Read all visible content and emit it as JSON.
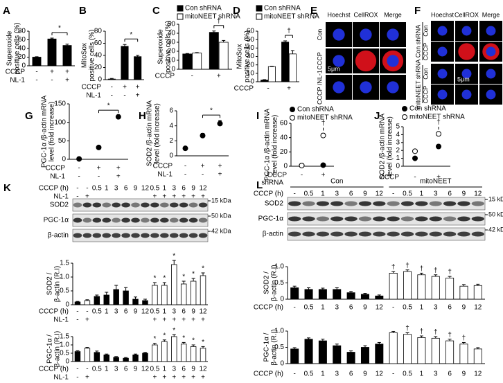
{
  "chart_data": [
    {
      "type": "bar",
      "panel": "A",
      "ylabel": [
        "Superoxide",
        "positive cells (%)"
      ],
      "ylim": [
        0,
        80
      ],
      "yticks": [
        0,
        20,
        40,
        60,
        80
      ],
      "series": [
        {
          "color": "#000000",
          "values": [
            20,
            62,
            47
          ],
          "errors": [
            1,
            2,
            3
          ]
        }
      ],
      "conditions": [
        {
          "label": "CCCP",
          "values": [
            "-",
            "+",
            "+"
          ]
        },
        {
          "label": "NL-1",
          "values": [
            "-",
            "-",
            "+"
          ]
        }
      ],
      "significance": "*"
    },
    {
      "type": "bar",
      "panel": "B",
      "ylabel": [
        "MitoSox",
        "positive cells (%)"
      ],
      "ylim": [
        0,
        80
      ],
      "yticks": [
        0,
        20,
        40,
        60,
        80
      ],
      "series": [
        {
          "color": "#000000",
          "values": [
            1,
            55,
            38
          ],
          "errors": [
            1,
            3,
            2
          ]
        }
      ],
      "conditions": [
        {
          "label": "CCCP",
          "values": [
            "-",
            "+",
            "+"
          ]
        },
        {
          "label": "NL-1",
          "values": [
            "-",
            "-",
            "+"
          ]
        }
      ],
      "significance": "*"
    },
    {
      "type": "bar",
      "panel": "C",
      "ylabel": [
        "Superoxide",
        "positive cells (%)"
      ],
      "ylim": [
        0,
        50
      ],
      "yticks": [
        0,
        10,
        20,
        30,
        40,
        50
      ],
      "series": [
        {
          "name": "Con shRNA",
          "color": "#000000",
          "values": [
            17,
            41
          ],
          "errors": [
            0.5,
            1.5
          ]
        },
        {
          "name": "mitoNEET shRNA",
          "color": "#ffffff",
          "values": [
            18,
            30
          ],
          "errors": [
            0.5,
            2
          ]
        }
      ],
      "conditions": [
        {
          "label": "CCCP",
          "values": [
            "-",
            "+"
          ]
        }
      ],
      "significance": "†"
    },
    {
      "type": "bar",
      "panel": "D",
      "ylabel": [
        "MitoSox",
        "positive cells (%)"
      ],
      "ylim": [
        0,
        60
      ],
      "yticks": [
        0,
        10,
        20,
        30,
        40,
        50,
        60
      ],
      "series": [
        {
          "name": "Con shRNA",
          "color": "#000000",
          "values": [
            2,
            47
          ],
          "errors": [
            0.5,
            1.5
          ]
        },
        {
          "name": "mitoNEET shRNA",
          "color": "#ffffff",
          "values": [
            18,
            33
          ],
          "errors": [
            0.5,
            4
          ]
        }
      ],
      "conditions": [
        {
          "label": "CCCP",
          "values": [
            "-",
            "+"
          ]
        }
      ],
      "significance": "†"
    },
    {
      "type": "scatter",
      "panel": "G",
      "ylabel": [
        "PGC-1α /β-actin mRNA",
        "level (fold increase)"
      ],
      "ylim": [
        0,
        150
      ],
      "yticks": [
        0,
        50,
        100,
        150
      ],
      "series": [
        {
          "color": "#000000",
          "values": [
            1,
            32,
            115
          ],
          "errors": [
            1,
            3,
            3
          ]
        }
      ],
      "conditions": [
        {
          "label": "CCCP",
          "values": [
            "-",
            "+",
            "+"
          ]
        },
        {
          "label": "NL-1",
          "values": [
            "-",
            "-",
            "+"
          ]
        }
      ],
      "significance": "*"
    },
    {
      "type": "scatter",
      "panel": "H",
      "ylabel": [
        "SOD2 /β-actin mRNA",
        "level (fold increase)"
      ],
      "ylim": [
        0,
        6
      ],
      "yticks": [
        0,
        2,
        4,
        6
      ],
      "series": [
        {
          "color": "#000000",
          "values": [
            1,
            2.7,
            4.3
          ],
          "errors": [
            0.1,
            0.3,
            0.4
          ]
        }
      ],
      "conditions": [
        {
          "label": "CCCP",
          "values": [
            "-",
            "+",
            "+"
          ]
        },
        {
          "label": "NL-1",
          "values": [
            "-",
            "-",
            "+"
          ]
        }
      ],
      "significance": "*"
    },
    {
      "type": "scatter",
      "panel": "I",
      "ylabel": [
        "PGC-1α /β-actin mRNA",
        "level (fold increase)"
      ],
      "ylim": [
        0,
        60
      ],
      "yticks": [
        0,
        20,
        40,
        60
      ],
      "series": [
        {
          "name": "Con shRNA",
          "color": "#000000",
          "values": [
            1,
            1.5
          ]
        },
        {
          "name": "mitoNEET shRNA",
          "color": "#ffffff",
          "values": [
            1,
            43
          ],
          "errors": [
            0.3,
            3
          ]
        }
      ],
      "conditions": [
        {
          "label": "CCCP",
          "values": [
            "-",
            "+"
          ]
        }
      ],
      "significance": "†"
    },
    {
      "type": "scatter",
      "panel": "J",
      "ylabel": [
        "SOD2 /β-actin mRNA",
        "level (fold increase)"
      ],
      "ylim": [
        0,
        5
      ],
      "yticks": [
        0,
        1,
        2,
        3,
        4,
        5
      ],
      "series": [
        {
          "name": "Con shRNA",
          "color": "#000000",
          "values": [
            1,
            2.5
          ]
        },
        {
          "name": "mitoNEET shRNA",
          "color": "#ffffff",
          "values": [
            1.9,
            4.1
          ],
          "errors": [
            0.1,
            0.2
          ]
        }
      ],
      "conditions": [
        {
          "label": "CCCP",
          "values": [
            "-",
            "+"
          ]
        }
      ],
      "significance": "†"
    },
    {
      "type": "bar",
      "ylabel": [
        "SOD2 /",
        "β-actin (R.I)"
      ],
      "ylim": [
        0,
        1.5
      ],
      "yticks": [
        0,
        0.5,
        {
          "value": 1,
          "label": "1.0"
        },
        1.5
      ],
      "series": [
        {
          "colors": [
            "#000000",
            "#ffffff",
            "#000000",
            "#000000",
            "#000000",
            "#000000",
            "#000000",
            "#000000",
            "#ffffff",
            "#ffffff",
            "#ffffff",
            "#ffffff",
            "#ffffff",
            "#ffffff"
          ],
          "values": [
            0.1,
            0.15,
            0.3,
            0.35,
            0.55,
            0.5,
            0.2,
            0.15,
            0.7,
            0.7,
            1.45,
            0.75,
            0.85,
            1.05
          ],
          "errors": [
            0.02,
            0.03,
            0.05,
            0.1,
            0.15,
            0.12,
            0.08,
            0.05,
            0.1,
            0.1,
            0.15,
            0.1,
            0.1,
            0.1
          ],
          "markers": [
            null,
            null,
            null,
            null,
            null,
            null,
            null,
            null,
            "*",
            "*",
            "*",
            "*",
            "*",
            "*"
          ]
        }
      ],
      "conditions": [
        {
          "label": "CCCP (h)",
          "values": [
            "-",
            "-",
            "0.5",
            "1",
            "3",
            "6",
            "9",
            "12",
            "0.5",
            "1",
            "3",
            "6",
            "9",
            "12"
          ]
        },
        {
          "label": "NL-1",
          "values": [
            "-",
            "+",
            null,
            null,
            null,
            null,
            null,
            null,
            "+",
            "+",
            "+",
            "+",
            "+",
            "+"
          ]
        }
      ]
    },
    {
      "type": "bar",
      "ylabel": [
        "PGC-1α /",
        "β-actin (R.I)"
      ],
      "ylim": [
        0,
        1.5
      ],
      "yticks": [
        0,
        0.5,
        {
          "value": 1,
          "label": "1.0"
        },
        1.5
      ],
      "series": [
        {
          "colors": [
            "#000000",
            "#ffffff",
            "#000000",
            "#000000",
            "#000000",
            "#000000",
            "#000000",
            "#000000",
            "#ffffff",
            "#ffffff",
            "#ffffff",
            "#ffffff",
            "#ffffff",
            "#ffffff"
          ],
          "values": [
            0.6,
            0.8,
            0.55,
            0.4,
            0.25,
            0.2,
            0.4,
            0.5,
            1.0,
            1.2,
            1.5,
            1.05,
            0.9,
            0.8
          ],
          "errors": [
            0.05,
            0.05,
            0.08,
            0.05,
            0.05,
            0.04,
            0.05,
            0.05,
            0.1,
            0.1,
            0.12,
            0.1,
            0.1,
            0.1
          ],
          "markers": [
            null,
            null,
            null,
            null,
            null,
            null,
            null,
            null,
            "*",
            "*",
            "*",
            "*",
            "*",
            "*"
          ]
        }
      ],
      "conditions": [
        {
          "label": "CCCP (h)",
          "values": [
            "-",
            "-",
            "0.5",
            "1",
            "3",
            "6",
            "9",
            "12",
            "0.5",
            "1",
            "3",
            "6",
            "9",
            "12"
          ]
        },
        {
          "label": "NL-1",
          "values": [
            "-",
            "+",
            null,
            null,
            null,
            null,
            null,
            null,
            "+",
            "+",
            "+",
            "+",
            "+",
            "+"
          ]
        }
      ]
    },
    {
      "type": "bar",
      "ylabel": [
        "SOD2 /",
        "β-actin (R.I)"
      ],
      "ylim": [
        0,
        1
      ],
      "yticks": [
        0,
        0.5,
        {
          "value": 1,
          "label": "1.0"
        }
      ],
      "series": [
        {
          "colors": [
            "#000000",
            "#000000",
            "#000000",
            "#000000",
            "#000000",
            "#000000",
            "#000000",
            "#ffffff",
            "#ffffff",
            "#ffffff",
            "#ffffff",
            "#ffffff",
            "#ffffff",
            "#ffffff"
          ],
          "values": [
            0.35,
            0.3,
            0.3,
            0.3,
            0.2,
            0.15,
            0.1,
            0.8,
            0.85,
            0.75,
            0.7,
            0.65,
            0.4,
            0.42
          ],
          "errors": [
            0.05,
            0.05,
            0.04,
            0.05,
            0.04,
            0.03,
            0.03,
            0.05,
            0.05,
            0.05,
            0.05,
            0.05,
            0.05,
            0.04
          ],
          "markers": [
            null,
            null,
            null,
            null,
            null,
            null,
            null,
            "†",
            "†",
            "†",
            "†",
            "†",
            null,
            null
          ]
        }
      ],
      "conditions": [
        {
          "label": "CCCP (h)",
          "values": [
            "-",
            "0.5",
            "1",
            "3",
            "6",
            "9",
            "12",
            "-",
            "0.5",
            "1",
            "3",
            "6",
            "9",
            "12"
          ]
        }
      ]
    },
    {
      "type": "bar",
      "ylabel": [
        "PGC-1α /",
        "β-actin (R.I)"
      ],
      "ylim": [
        0,
        1
      ],
      "yticks": [
        0,
        0.5,
        {
          "value": 1,
          "label": "1.0"
        }
      ],
      "series": [
        {
          "colors": [
            "#000000",
            "#000000",
            "#000000",
            "#000000",
            "#000000",
            "#000000",
            "#000000",
            "#ffffff",
            "#ffffff",
            "#ffffff",
            "#ffffff",
            "#ffffff",
            "#ffffff",
            "#ffffff"
          ],
          "values": [
            0.45,
            0.75,
            0.7,
            0.55,
            0.35,
            0.5,
            0.6,
            0.95,
            0.9,
            0.8,
            0.78,
            0.7,
            0.6,
            0.45
          ],
          "errors": [
            0.04,
            0.04,
            0.05,
            0.05,
            0.04,
            0.05,
            0.05,
            0.04,
            0.05,
            0.05,
            0.05,
            0.05,
            0.05,
            0.04
          ],
          "markers": [
            null,
            null,
            null,
            null,
            null,
            null,
            null,
            null,
            "†",
            "†",
            "†",
            "†",
            "†",
            null
          ]
        }
      ],
      "conditions": [
        {
          "label": "CCCP (h)",
          "values": [
            "-",
            "0.5",
            "1",
            "3",
            "6",
            "9",
            "12",
            "-",
            "0.5",
            "1",
            "3",
            "6",
            "9",
            "12"
          ]
        }
      ]
    }
  ],
  "blots": [
    {
      "panel": "K",
      "columns": [
        {
          "label": "CCCP (h)",
          "values": [
            "-",
            "-",
            "0.5",
            "1",
            "3",
            "6",
            "9",
            "12",
            "0.5",
            "1",
            "3",
            "6",
            "9",
            "12"
          ]
        },
        {
          "label": "NL-1",
          "values": [
            "-",
            "+",
            null,
            null,
            null,
            null,
            null,
            null,
            "+",
            "+",
            "+",
            "+",
            "+",
            "+"
          ]
        }
      ],
      "rows": [
        "SOD2",
        "PGC-1α",
        "β-actin"
      ],
      "markers": [
        "15 kDa",
        "50 kDa",
        "42 kDa"
      ]
    },
    {
      "panel": "L",
      "header": {
        "label": "shRNA",
        "groups": [
          "Con",
          "mitoNEET"
        ]
      },
      "columns": [
        {
          "label": "CCCP (h)",
          "values": [
            "-",
            "0.5",
            "1",
            "3",
            "6",
            "9",
            "12",
            "-",
            "0.5",
            "1",
            "3",
            "6",
            "9",
            "12"
          ]
        }
      ],
      "rows": [
        "SOD2",
        "PGC-1α",
        "β-actin"
      ],
      "markers": [
        "15 kDa",
        "50 kDa",
        "42 kDa"
      ]
    }
  ],
  "images": [
    {
      "panel": "E",
      "columns": [
        "Hoechst",
        "CellROX",
        "Merge"
      ],
      "rows": [
        "Con",
        "CCCP",
        "CCCP /NL-1"
      ],
      "scale": "5μm"
    },
    {
      "panel": "F",
      "columns": [
        "Hoechst",
        "CellROX",
        "Merge"
      ],
      "row_groups": [
        {
          "name": "Con shRNA",
          "rows": [
            "Con",
            "CCCP"
          ]
        },
        {
          "name": "mitoNEET shRNA",
          "rows": [
            "Con",
            "CCCP"
          ]
        }
      ],
      "scale": "5μm"
    }
  ]
}
